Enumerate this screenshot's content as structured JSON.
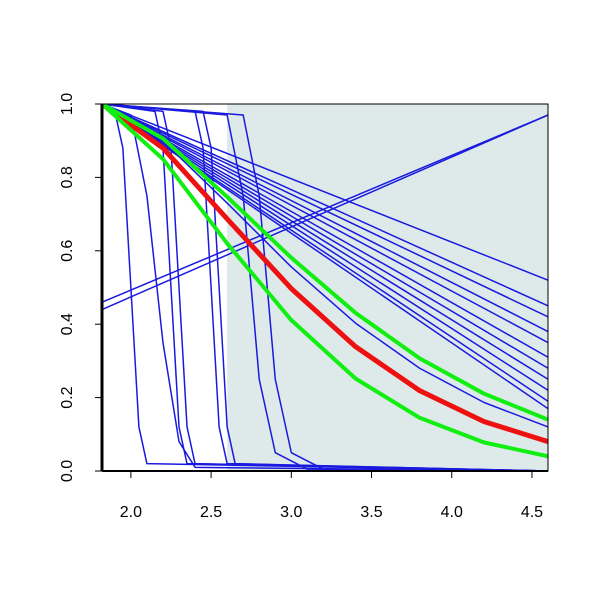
{
  "chart_data": {
    "type": "line",
    "xlim": [
      1.82,
      4.6
    ],
    "ylim": [
      0,
      1
    ],
    "xticks": [
      {
        "value": 2.0,
        "label": "2.0"
      },
      2.5,
      {
        "value": 3.0,
        "label": "3.0"
      },
      3.5,
      {
        "value": 4.0,
        "label": "4.0"
      },
      4.5
    ],
    "yticks": [
      {
        "value": 0,
        "label": "0.0"
      },
      0.2,
      0.4,
      0.6,
      0.8,
      {
        "value": 1,
        "label": "1.0"
      }
    ],
    "shaded_xrange": [
      2.6,
      4.6
    ],
    "shaded_color": "#deeaea",
    "series": [
      {
        "color": "#1a1adf",
        "width": 1.5,
        "x": [
          1.82,
          4.6
        ],
        "values": [
          1,
          0.52
        ]
      },
      {
        "color": "#1a1adf",
        "width": 1.5,
        "x": [
          1.82,
          4.6
        ],
        "values": [
          1,
          0.45
        ]
      },
      {
        "color": "#1a1adf",
        "width": 1.5,
        "x": [
          1.82,
          4.6
        ],
        "values": [
          1,
          0.42
        ]
      },
      {
        "color": "#1a1adf",
        "width": 1.5,
        "x": [
          1.82,
          4.6
        ],
        "values": [
          1,
          0.38
        ]
      },
      {
        "color": "#1a1adf",
        "width": 1.5,
        "x": [
          1.82,
          4.6
        ],
        "values": [
          1,
          0.35
        ]
      },
      {
        "color": "#1a1adf",
        "width": 1.5,
        "x": [
          1.82,
          4.6
        ],
        "values": [
          1,
          0.31
        ]
      },
      {
        "color": "#1a1adf",
        "width": 1.5,
        "x": [
          1.82,
          4.6
        ],
        "values": [
          1,
          0.28
        ]
      },
      {
        "color": "#1a1adf",
        "width": 1.5,
        "x": [
          1.82,
          4.6
        ],
        "values": [
          1,
          0.25
        ]
      },
      {
        "color": "#1a1adf",
        "width": 1.5,
        "x": [
          1.82,
          4.6
        ],
        "values": [
          1,
          0.22
        ]
      },
      {
        "color": "#1a1adf",
        "width": 1.5,
        "x": [
          1.82,
          4.6
        ],
        "values": [
          1,
          0.19
        ]
      },
      {
        "color": "#1a1adf",
        "width": 1.5,
        "x": [
          1.82,
          4.6
        ],
        "values": [
          1,
          0.17
        ]
      },
      {
        "color": "#1a1adf",
        "width": 1.5,
        "x": [
          1.82,
          4.6
        ],
        "values": [
          0.44,
          0.97
        ]
      },
      {
        "color": "#1a1adf",
        "width": 1.5,
        "x": [
          1.82,
          4.6
        ],
        "values": [
          0.46,
          0.97
        ]
      },
      {
        "color": "#1a1adf",
        "width": 1.5,
        "x": [
          1.82,
          2.2,
          2.6,
          3.0,
          3.4,
          3.8,
          4.2,
          4.6
        ],
        "values": [
          1,
          0.899,
          0.73,
          0.556,
          0.403,
          0.28,
          0.187,
          0.12
        ]
      },
      {
        "color": "#1a1adf",
        "width": 1.5,
        "x": [
          1.82,
          1.9,
          1.95,
          2.0,
          2.05,
          2.1,
          4.6
        ],
        "values": [
          1,
          0.98,
          0.88,
          0.5,
          0.12,
          0.02,
          0
        ]
      },
      {
        "color": "#1a1adf",
        "width": 1.5,
        "x": [
          1.82,
          2.0,
          2.1,
          2.2,
          2.3,
          2.4,
          4.6
        ],
        "values": [
          1,
          0.97,
          0.75,
          0.35,
          0.08,
          0.01,
          0
        ]
      },
      {
        "color": "#1a1adf",
        "width": 1.5,
        "x": [
          1.82,
          2.15,
          2.2,
          2.25,
          2.3,
          2.35,
          4.6
        ],
        "values": [
          1,
          0.98,
          0.88,
          0.5,
          0.12,
          0.02,
          0
        ]
      },
      {
        "color": "#1a1adf",
        "width": 1.5,
        "x": [
          1.82,
          2.2,
          2.25,
          2.3,
          2.35,
          2.4,
          4.6
        ],
        "values": [
          1,
          0.98,
          0.88,
          0.5,
          0.12,
          0.02,
          0
        ]
      },
      {
        "color": "#1a1adf",
        "width": 1.5,
        "x": [
          1.82,
          2.4,
          2.45,
          2.5,
          2.55,
          2.6,
          4.6
        ],
        "values": [
          1,
          0.98,
          0.88,
          0.5,
          0.12,
          0.02,
          0
        ]
      },
      {
        "color": "#1a1adf",
        "width": 1.5,
        "x": [
          1.82,
          2.45,
          2.5,
          2.55,
          2.6,
          2.65,
          4.6
        ],
        "values": [
          1,
          0.98,
          0.88,
          0.5,
          0.12,
          0.02,
          0
        ]
      },
      {
        "color": "#1a1adf",
        "width": 1.5,
        "x": [
          1.82,
          2.6,
          2.7,
          2.75,
          2.8,
          2.9,
          3.1,
          4.6
        ],
        "values": [
          1,
          0.97,
          0.75,
          0.5,
          0.25,
          0.05,
          0.005,
          0
        ]
      },
      {
        "color": "#1a1adf",
        "width": 1.5,
        "x": [
          1.82,
          2.7,
          2.8,
          2.85,
          2.9,
          3.0,
          3.2,
          4.6
        ],
        "values": [
          1,
          0.97,
          0.75,
          0.5,
          0.25,
          0.05,
          0.005,
          0
        ]
      },
      {
        "color": "#ee1111",
        "width": 5,
        "x": [
          1.82,
          2.2,
          2.6,
          3.0,
          3.4,
          3.8,
          4.2,
          4.6
        ],
        "values": [
          1,
          0.88,
          0.687,
          0.497,
          0.339,
          0.219,
          0.135,
          0.08
        ]
      },
      {
        "color": "#11ee11",
        "width": 4,
        "x": [
          1.82,
          2.2,
          2.6,
          3.0,
          3.4,
          3.8,
          4.2,
          4.6
        ],
        "values": [
          1,
          0.906,
          0.747,
          0.581,
          0.431,
          0.307,
          0.211,
          0.14
        ]
      },
      {
        "color": "#11ee11",
        "width": 4,
        "x": [
          1.82,
          2.2,
          2.6,
          3.0,
          3.4,
          3.8,
          4.2,
          4.6
        ],
        "values": [
          1,
          0.85,
          0.62,
          0.411,
          0.252,
          0.145,
          0.078,
          0.04
        ]
      }
    ]
  }
}
